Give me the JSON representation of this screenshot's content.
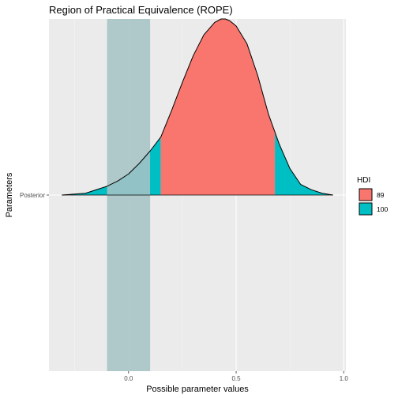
{
  "chart_data": {
    "type": "area",
    "title": "Region of Practical Equivalence (ROPE)",
    "xlabel": "Possible parameter values",
    "ylabel": "Parameters",
    "xlim": [
      -0.37,
      1.01
    ],
    "x_ticks": [
      0.0,
      0.5,
      1.0
    ],
    "x_tick_labels": [
      "0.0",
      "0.5",
      "1.0"
    ],
    "y_categories": [
      "Posterior"
    ],
    "grid": true,
    "legend_position": "right",
    "rope": {
      "low": -0.1,
      "high": 0.1,
      "color": "#a6c3c5"
    },
    "density": {
      "x": [
        -0.31,
        -0.2,
        -0.1,
        -0.05,
        0.0,
        0.05,
        0.1,
        0.15,
        0.2,
        0.25,
        0.3,
        0.35,
        0.4,
        0.43,
        0.45,
        0.47,
        0.5,
        0.55,
        0.6,
        0.65,
        0.7,
        0.75,
        0.8,
        0.85,
        0.9,
        0.95
      ],
      "y": [
        0.0,
        0.01,
        0.05,
        0.08,
        0.12,
        0.18,
        0.25,
        0.33,
        0.48,
        0.64,
        0.79,
        0.91,
        0.98,
        1.0,
        1.0,
        0.99,
        0.96,
        0.86,
        0.68,
        0.46,
        0.29,
        0.15,
        0.06,
        0.03,
        0.01,
        0.0
      ]
    },
    "hdi_89": {
      "low": 0.15,
      "high": 0.68
    },
    "legend": {
      "title": "HDI",
      "items": [
        {
          "label": "89",
          "color": "#f8766d"
        },
        {
          "label": "100",
          "color": "#00bfc4"
        }
      ]
    },
    "colors": {
      "panel": "#ebebeb",
      "grid_major": "#ffffff",
      "grid_minor": "#f5f5f5",
      "outline": "#000000"
    }
  }
}
